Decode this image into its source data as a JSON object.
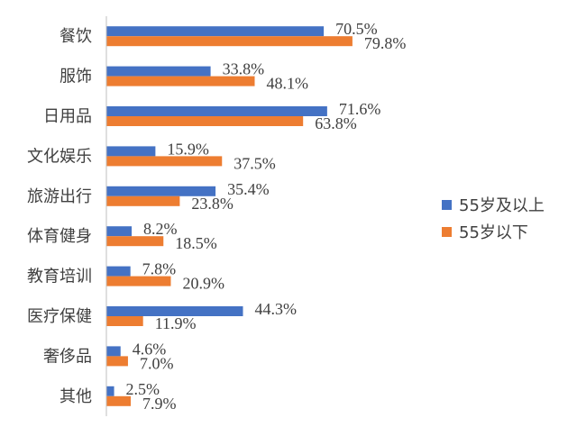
{
  "chart_data": {
    "type": "bar",
    "orientation": "horizontal",
    "categories": [
      "餐饮",
      "服饰",
      "日用品",
      "文化娱乐",
      "旅游出行",
      "体育健身",
      "教育培训",
      "医疗保健",
      "奢侈品",
      "其他"
    ],
    "series": [
      {
        "name": "55岁及以上",
        "color": "#4472C4",
        "values": [
          70.5,
          33.8,
          71.6,
          15.9,
          35.4,
          8.2,
          7.8,
          44.3,
          4.6,
          2.5
        ],
        "labels": [
          "70.5%",
          "33.8%",
          "71.6%",
          "15.9%",
          "35.4%",
          "8.2%",
          "7.8%",
          "44.3%",
          "4.6%",
          "2.5%"
        ]
      },
      {
        "name": "55岁以下",
        "color": "#ED7D31",
        "values": [
          79.8,
          48.1,
          63.8,
          37.5,
          23.8,
          18.5,
          20.9,
          11.9,
          7.0,
          7.9
        ],
        "labels": [
          "79.8%",
          "48.1%",
          "63.8%",
          "37.5%",
          "23.8%",
          "18.5%",
          "20.9%",
          "11.9%",
          "7.0%",
          "7.9%"
        ]
      }
    ],
    "xlim": [
      0,
      100
    ],
    "legend_position": "right"
  }
}
